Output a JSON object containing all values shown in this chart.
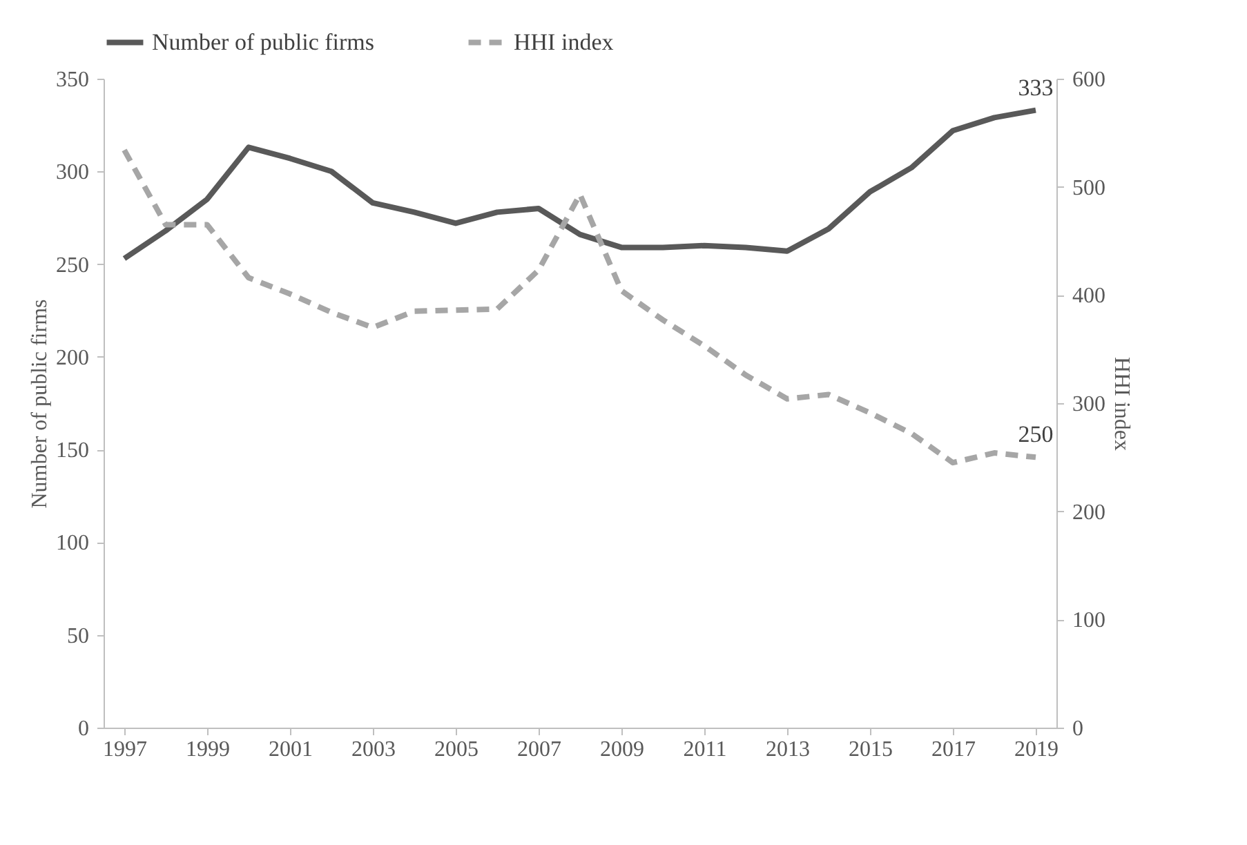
{
  "chart_data": {
    "type": "line",
    "x": [
      1997,
      1998,
      1999,
      2000,
      2001,
      2002,
      2003,
      2004,
      2005,
      2006,
      2007,
      2008,
      2009,
      2010,
      2011,
      2012,
      2013,
      2014,
      2015,
      2016,
      2017,
      2018,
      2019
    ],
    "xlim": [
      1996.5,
      2019.5
    ],
    "xticks": [
      1997,
      1999,
      2001,
      2003,
      2005,
      2007,
      2009,
      2011,
      2013,
      2015,
      2017,
      2019
    ],
    "ylabel": "Number of public firms",
    "y2label": "HHI index",
    "ylim": [
      0,
      350
    ],
    "yticks": [
      0,
      50,
      100,
      150,
      200,
      250,
      300,
      350
    ],
    "y2lim": [
      0,
      600
    ],
    "y2ticks": [
      0,
      100,
      200,
      300,
      400,
      500,
      600
    ],
    "legend": "top",
    "grid": false,
    "series": [
      {
        "name": "Number of public firms",
        "color": "#595959",
        "line_style": "solid",
        "values": [
          253,
          268,
          285,
          313,
          307,
          300,
          283,
          278,
          272,
          278,
          280,
          266,
          259,
          259,
          260,
          259,
          257,
          269,
          289,
          302,
          322,
          329,
          333
        ],
        "value_labels": [
          null,
          null,
          null,
          null,
          null,
          null,
          null,
          null,
          null,
          null,
          null,
          null,
          null,
          null,
          null,
          null,
          null,
          null,
          null,
          null,
          null,
          null,
          "333"
        ]
      },
      {
        "name": "HHI index",
        "color": "#a6a6a6",
        "line_style": "dashed",
        "axis": "y2",
        "values": [
          534,
          465,
          465,
          416,
          401,
          384,
          370,
          385,
          386,
          387,
          423,
          493,
          404,
          377,
          353,
          326,
          304,
          308,
          291,
          272,
          245,
          254,
          250
        ],
        "value_labels": [
          null,
          null,
          null,
          null,
          null,
          null,
          null,
          null,
          null,
          null,
          null,
          null,
          null,
          null,
          null,
          null,
          null,
          null,
          null,
          null,
          null,
          null,
          "250"
        ]
      }
    ]
  }
}
